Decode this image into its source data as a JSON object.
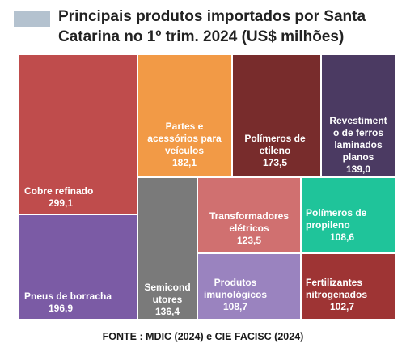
{
  "legend": {
    "color": "#b4c2cf"
  },
  "chart_data": {
    "type": "treemap",
    "title": "Principais produtos importados por Santa Catarina no 1º trim. 2024 (US$ milhões)",
    "source": "FONTE : MDIC (2024) e CIE FACISC (2024)",
    "items": [
      {
        "lines": [
          "Cobre refinado"
        ],
        "value": "299,1",
        "num": 299.1,
        "color": "#bf4c4c"
      },
      {
        "lines": [
          "Pneus de borracha"
        ],
        "value": "196,9",
        "num": 196.9,
        "color": "#7b5ba5"
      },
      {
        "lines": [
          "Partes e",
          "acessórios para",
          "veículos"
        ],
        "value": "182,1",
        "num": 182.1,
        "color": "#f29a46"
      },
      {
        "lines": [
          "Polímeros de",
          "etileno"
        ],
        "value": "173,5",
        "num": 173.5,
        "color": "#782c2c"
      },
      {
        "lines": [
          "Revestiment",
          "o de ferros",
          "laminados",
          "planos"
        ],
        "value": "139,0",
        "num": 139.0,
        "color": "#4b3a62"
      },
      {
        "lines": [
          "Semicond",
          "utores"
        ],
        "value": "136,4",
        "num": 136.4,
        "color": "#7a7a7a"
      },
      {
        "lines": [
          "Transformadores",
          "elétricos"
        ],
        "value": "123,5",
        "num": 123.5,
        "color": "#d07070"
      },
      {
        "lines": [
          "Polímeros de",
          "propileno"
        ],
        "value": "108,6",
        "num": 108.6,
        "color": "#1fc49a"
      },
      {
        "lines": [
          "Produtos",
          "imunológicos"
        ],
        "value": "108,7",
        "num": 108.7,
        "color": "#9a83bf"
      },
      {
        "lines": [
          "Fertilizantes",
          "nitrogenados"
        ],
        "value": "102,7",
        "num": 102.7,
        "color": "#9e3434"
      }
    ]
  }
}
